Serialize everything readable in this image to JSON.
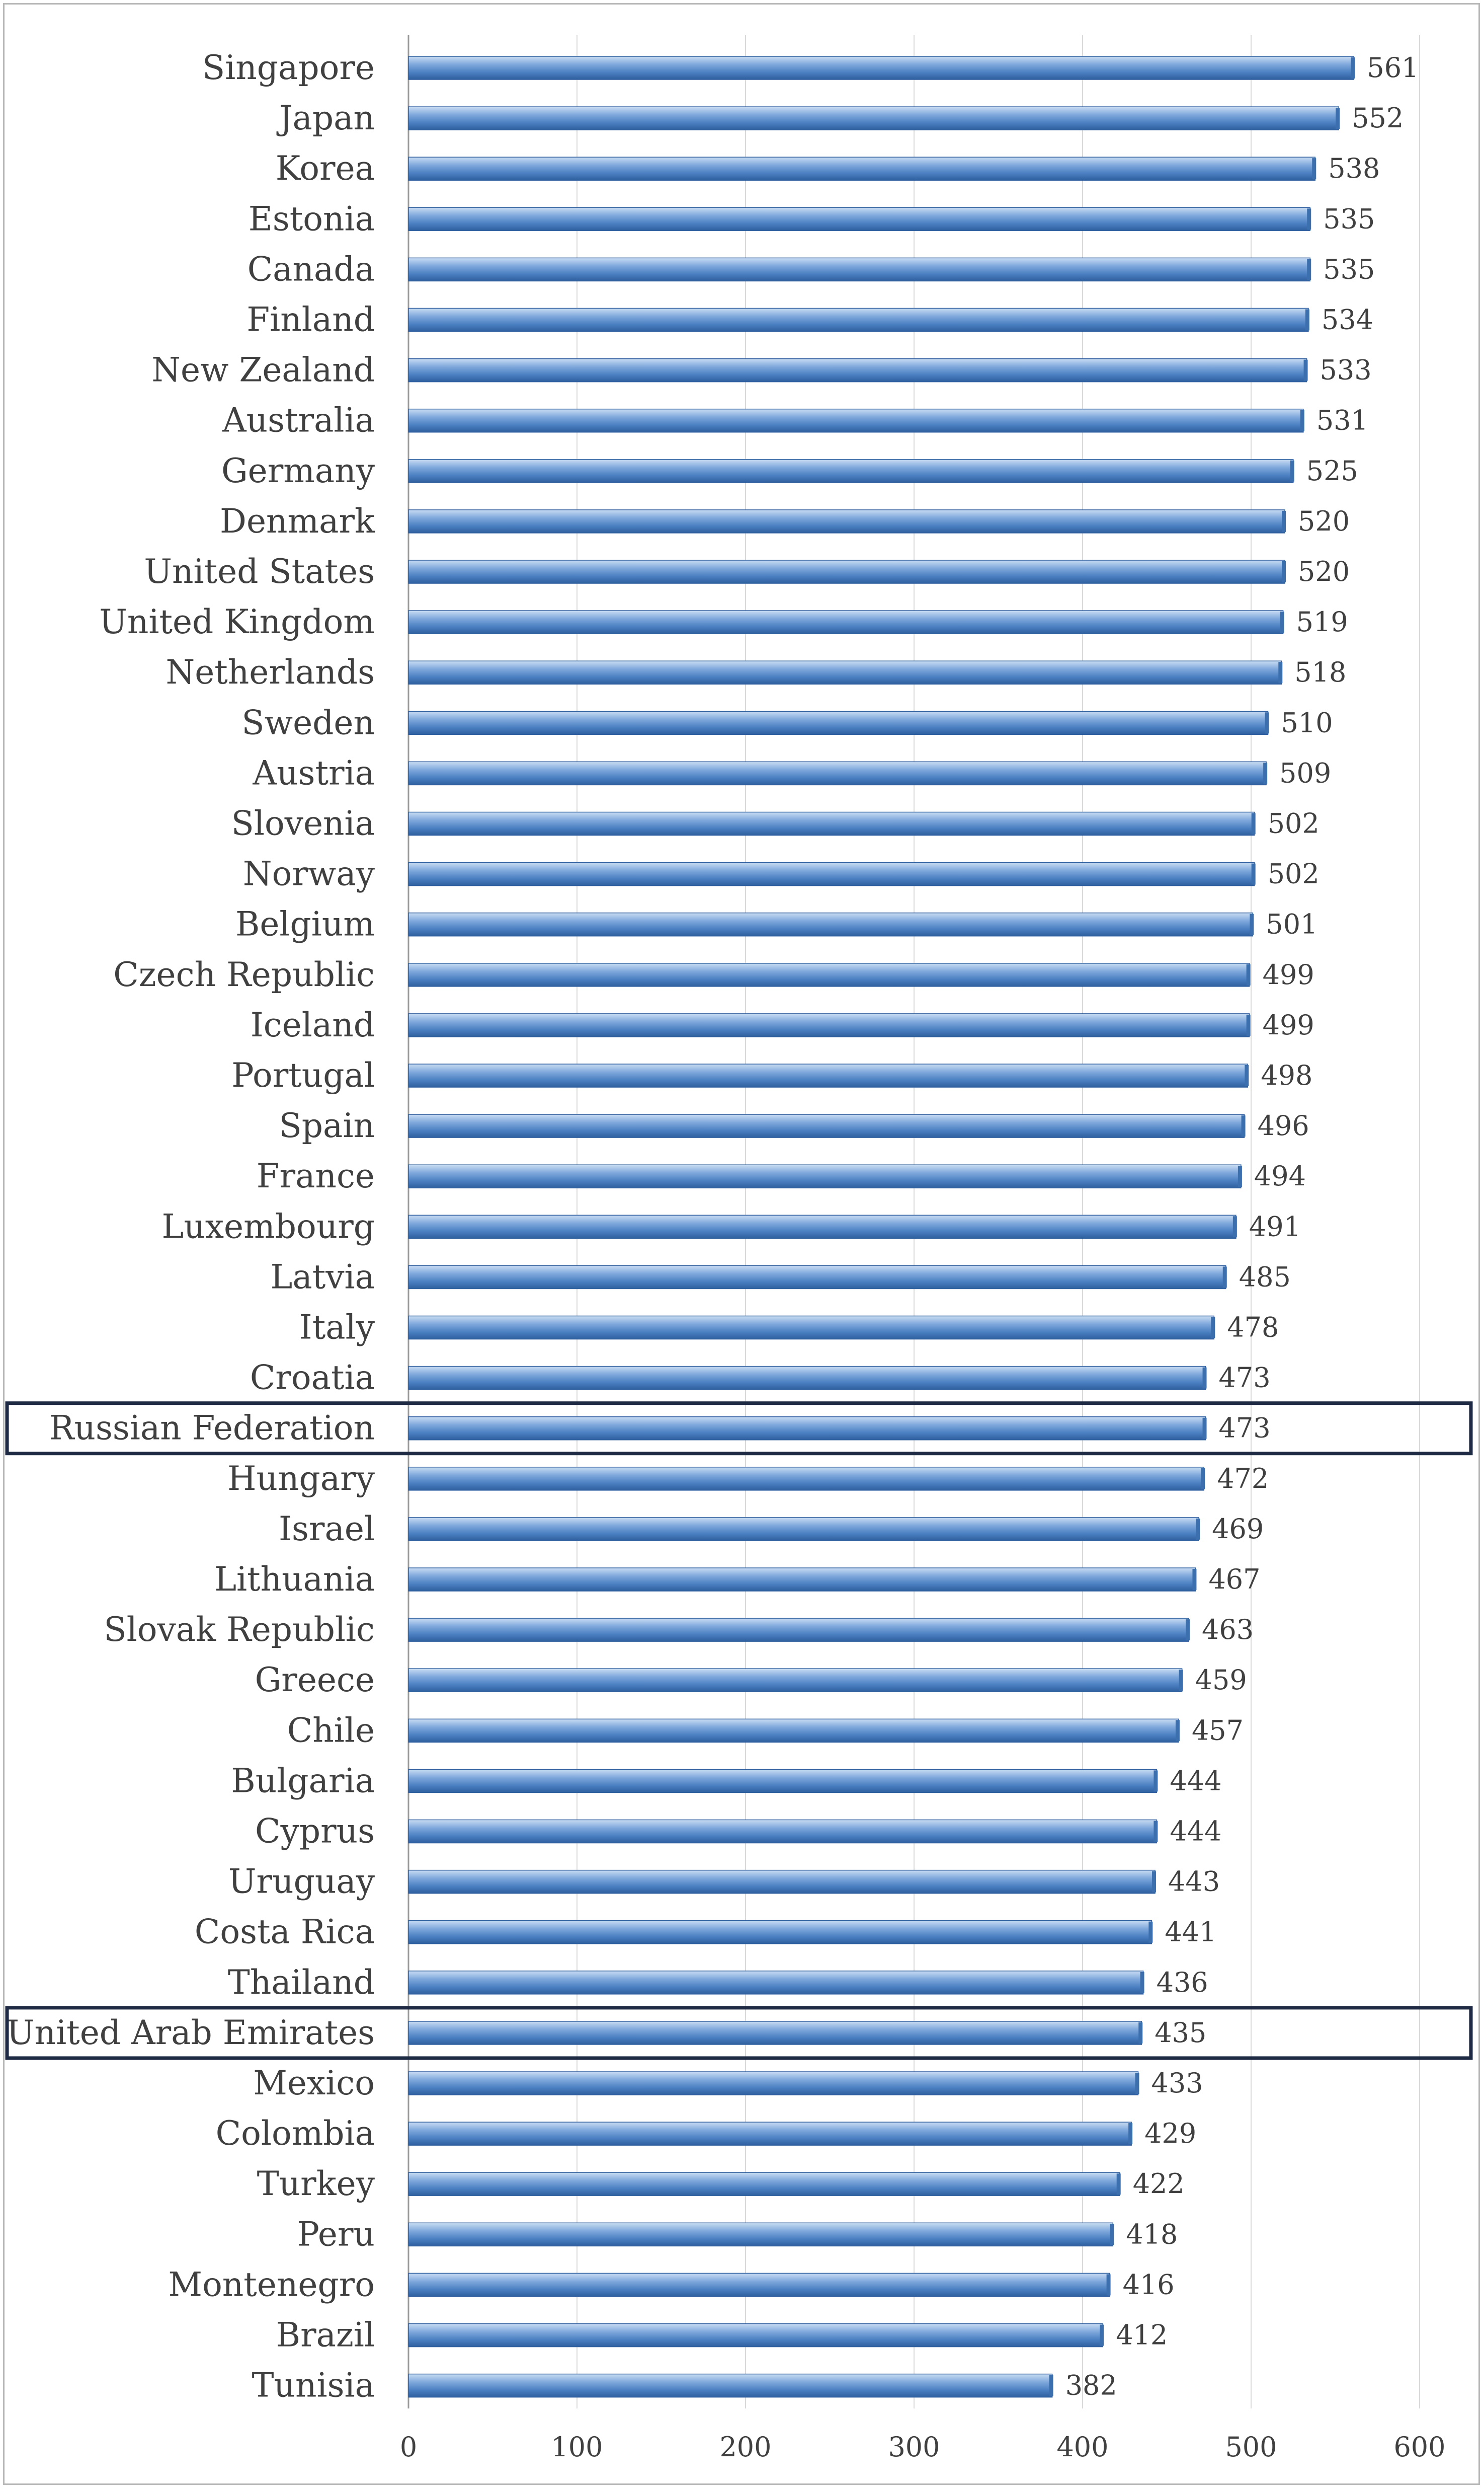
{
  "chart_data": {
    "type": "bar",
    "orientation": "horizontal",
    "title": "",
    "xlabel": "",
    "ylabel": "",
    "xlim": [
      0,
      600
    ],
    "x_ticks": [
      0,
      100,
      200,
      300,
      400,
      500,
      600
    ],
    "grid": "vertical",
    "legend": "none",
    "bar_color": "#4a7fc1",
    "highlight_color": "#1f2a44",
    "highlighted_categories": [
      "Russian Federation",
      "United Arab Emirates"
    ],
    "categories": [
      "Singapore",
      "Japan",
      "Korea",
      "Estonia",
      "Canada",
      "Finland",
      "New Zealand",
      "Australia",
      "Germany",
      "Denmark",
      "United States",
      "United Kingdom",
      "Netherlands",
      "Sweden",
      "Austria",
      "Slovenia",
      "Norway",
      "Belgium",
      "Czech Republic",
      "Iceland",
      "Portugal",
      "Spain",
      "France",
      "Luxembourg",
      "Latvia",
      "Italy",
      "Croatia",
      "Russian Federation",
      "Hungary",
      "Israel",
      "Lithuania",
      "Slovak Republic",
      "Greece",
      "Chile",
      "Bulgaria",
      "Cyprus",
      "Uruguay",
      "Costa Rica",
      "Thailand",
      "United Arab Emirates",
      "Mexico",
      "Colombia",
      "Turkey",
      "Peru",
      "Montenegro",
      "Brazil",
      "Tunisia"
    ],
    "values": [
      561,
      552,
      538,
      535,
      535,
      534,
      533,
      531,
      525,
      520,
      520,
      519,
      518,
      510,
      509,
      502,
      502,
      501,
      499,
      499,
      498,
      496,
      494,
      491,
      485,
      478,
      473,
      473,
      472,
      469,
      467,
      463,
      459,
      457,
      444,
      444,
      443,
      441,
      436,
      435,
      433,
      429,
      422,
      418,
      416,
      412,
      382
    ]
  }
}
